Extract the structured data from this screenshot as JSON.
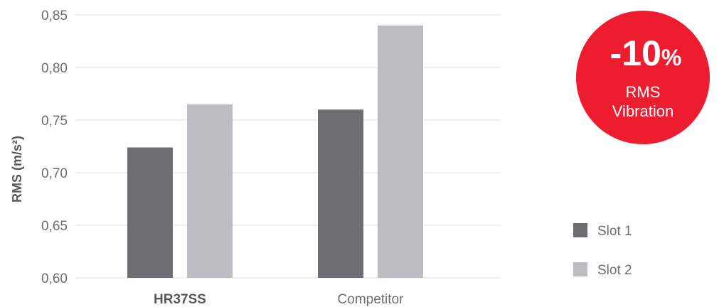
{
  "chart_data": {
    "type": "bar",
    "categories": [
      "HR37SS",
      "Competitor"
    ],
    "series": [
      {
        "name": "Slot 1",
        "values": [
          0.724,
          0.76
        ],
        "color": "#6d6e71"
      },
      {
        "name": "Slot 2",
        "values": [
          0.765,
          0.84
        ],
        "color": "#bcbdc0"
      }
    ],
    "ylabel": "RMS (m/s²)",
    "xlabel": "",
    "ylim": [
      0.6,
      0.85
    ],
    "yticks": [
      "0,60",
      "0,65",
      "0,70",
      "0,75",
      "0,80",
      "0,85"
    ],
    "ytick_values": [
      0.6,
      0.65,
      0.7,
      0.75,
      0.8,
      0.85
    ],
    "grid": true,
    "legend_position": "bottom-right",
    "emphasized_category": "HR37SS"
  },
  "badge": {
    "value": "-10",
    "unit": "%",
    "line1": "RMS",
    "line2": "Vibration",
    "color": "#ed1c2e"
  }
}
